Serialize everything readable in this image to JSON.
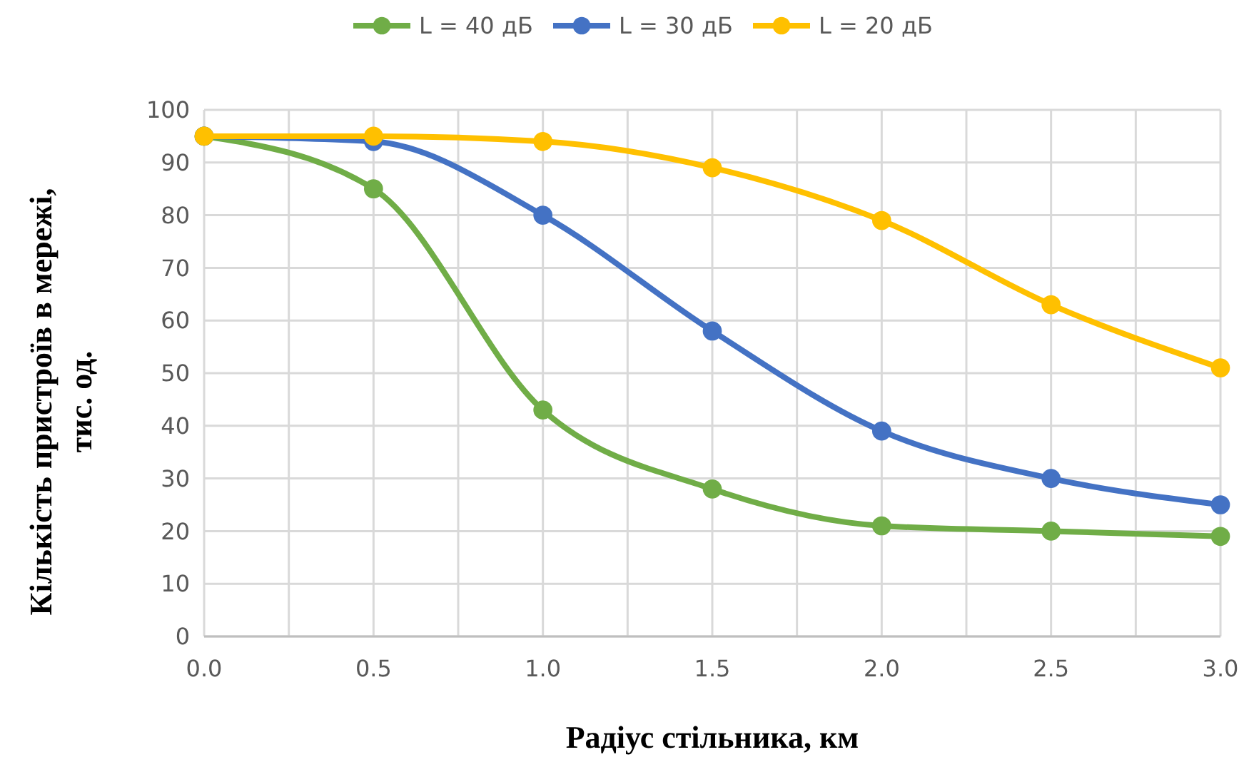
{
  "chart_data": {
    "type": "line",
    "xlabel": "Радіус стільника, км",
    "ylabel": "Кількість пристроїв в мережі, тис. од.",
    "x": [
      0,
      0.5,
      1,
      1.5,
      2,
      2.5,
      3
    ],
    "series": [
      {
        "name": "L = 40 дБ",
        "color": "#70ad47",
        "values": [
          95,
          85,
          43,
          28,
          21,
          20,
          19
        ]
      },
      {
        "name": "L = 30 дБ",
        "color": "#4472c4",
        "values": [
          95,
          94,
          80,
          58,
          39,
          30,
          25
        ]
      },
      {
        "name": "L = 20 дБ",
        "color": "#ffc000",
        "values": [
          95,
          95,
          94,
          89,
          79,
          63,
          51
        ]
      }
    ],
    "xlim": [
      0,
      3
    ],
    "xticks": [
      {
        "value": 0,
        "label": "0.0"
      },
      {
        "value": 0.25,
        "label": null
      },
      {
        "value": 0.5,
        "label": "0.5"
      },
      {
        "value": 0.75,
        "label": null
      },
      {
        "value": 1,
        "label": "1.0"
      },
      {
        "value": 1.25,
        "label": null
      },
      {
        "value": 1.5,
        "label": "1.5"
      },
      {
        "value": 1.75,
        "label": null
      },
      {
        "value": 2,
        "label": "2.0"
      },
      {
        "value": 2.25,
        "label": null
      },
      {
        "value": 2.5,
        "label": "2.5"
      },
      {
        "value": 2.75,
        "label": null
      },
      {
        "value": 3,
        "label": "3.0"
      }
    ],
    "ylim": [
      0,
      100
    ],
    "yticks": [
      0,
      10,
      20,
      30,
      40,
      50,
      60,
      70,
      80,
      90,
      100
    ],
    "grid": true,
    "legend": "top",
    "marker": "circle",
    "line_style": "solid"
  }
}
